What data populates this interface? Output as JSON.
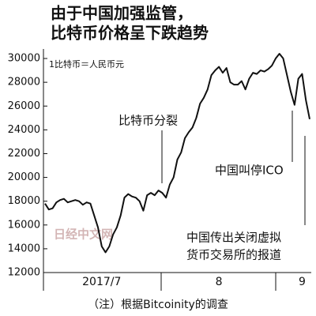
{
  "chart_data": {
    "type": "line",
    "title": [
      "由于中国加强监管，",
      "比特币价格呈下跌趋势"
    ],
    "unit_note": "1比特币＝人民币元",
    "categories": [
      null,
      null,
      null,
      null,
      null,
      null,
      null,
      null,
      null,
      null,
      null,
      null,
      null,
      null,
      null,
      "2017/7",
      null,
      null,
      null,
      null,
      null,
      null,
      null,
      null,
      null,
      null,
      null,
      null,
      null,
      null,
      null,
      null,
      null,
      null,
      null,
      null,
      null,
      null,
      null,
      null,
      null,
      null,
      null,
      null,
      null,
      null,
      "8",
      null,
      null,
      null,
      null,
      null,
      null,
      null,
      null,
      null,
      null,
      null,
      null,
      null,
      null,
      null,
      null,
      null,
      null,
      null,
      null,
      null,
      "9",
      null,
      null
    ],
    "series": [
      {
        "name": "比特币价格",
        "color": "#111111",
        "values": [
          17800,
          17300,
          17400,
          17900,
          18100,
          18200,
          17900,
          18000,
          18100,
          18000,
          17700,
          17900,
          17800,
          16800,
          15800,
          14200,
          13700,
          14200,
          15200,
          15800,
          16800,
          18300,
          18600,
          18400,
          18300,
          18000,
          17200,
          18500,
          18700,
          18500,
          18900,
          18700,
          18300,
          19400,
          20000,
          21500,
          22100,
          23300,
          23800,
          24200,
          25000,
          26200,
          26700,
          27400,
          28600,
          29000,
          29300,
          28800,
          29200,
          28000,
          27800,
          27800,
          28100,
          27400,
          28300,
          28800,
          28700,
          29000,
          28900,
          29100,
          29400,
          30000,
          30400,
          30000,
          28600,
          27200,
          26100,
          28300,
          28700,
          26500,
          24900
        ]
      }
    ],
    "ylim": [
      12000,
      30800
    ],
    "yticks": [
      12000,
      14000,
      16000,
      18000,
      20000,
      22000,
      24000,
      26000,
      28000,
      30000
    ],
    "grid": false,
    "annotations": [
      [
        "比特币分裂"
      ],
      [
        "中国叫停ICO"
      ],
      [
        "中国传出关闭虚拟",
        "货币交易所的报道"
      ]
    ],
    "watermark": "日经中文网",
    "source": "（注）根据Bitcoinity的调查"
  }
}
